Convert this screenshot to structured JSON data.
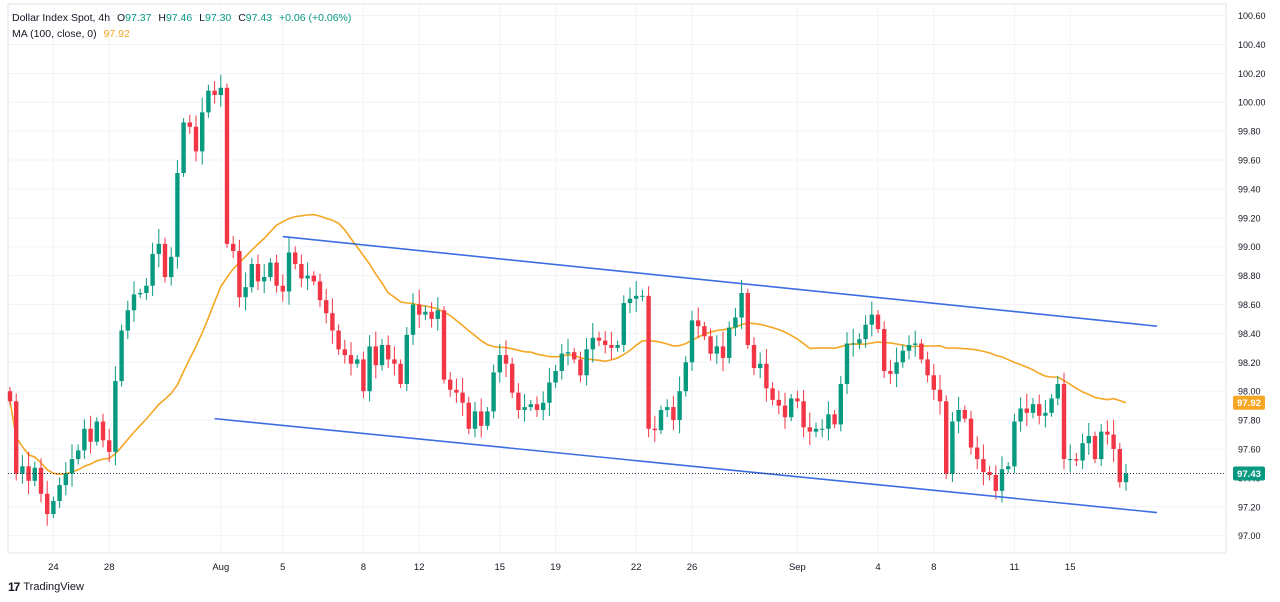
{
  "legend": {
    "symbol": "Dollar Index Spot, 4h",
    "open_label": "O",
    "open": "97.37",
    "high_label": "H",
    "high": "97.46",
    "low_label": "L",
    "low": "97.30",
    "close_label": "C",
    "close": "97.43",
    "change": "+0.06 (+0.06%)",
    "ma_label": "MA (100, close, 0)",
    "ma_value": "97.92"
  },
  "footer": {
    "logo": "17",
    "brand": "TradingView"
  },
  "chart_data": {
    "type": "candlestick",
    "title": "Dollar Index Spot, 4h",
    "ylim": [
      96.88,
      100.68
    ],
    "y_ticks": [
      "100.60",
      "100.40",
      "100.20",
      "100.00",
      "99.80",
      "99.60",
      "99.40",
      "99.20",
      "99.00",
      "98.80",
      "98.60",
      "98.40",
      "98.20",
      "98.00",
      "97.80",
      "97.60",
      "97.40",
      "97.20",
      "97.00"
    ],
    "x_ticks": [
      {
        "label": "24",
        "index": 7
      },
      {
        "label": "28",
        "index": 16
      },
      {
        "label": "Aug",
        "index": 34
      },
      {
        "label": "5",
        "index": 44
      },
      {
        "label": "8",
        "index": 57
      },
      {
        "label": "12",
        "index": 66
      },
      {
        "label": "15",
        "index": 79
      },
      {
        "label": "19",
        "index": 88
      },
      {
        "label": "22",
        "index": 101
      },
      {
        "label": "26",
        "index": 110
      },
      {
        "label": "Sep",
        "index": 127
      },
      {
        "label": "4",
        "index": 140
      },
      {
        "label": "8",
        "index": 149
      },
      {
        "label": "11",
        "index": 162
      },
      {
        "label": "15",
        "index": 171
      }
    ],
    "closes": [
      97.93,
      97.43,
      97.48,
      97.38,
      97.47,
      97.29,
      97.15,
      97.24,
      97.35,
      97.43,
      97.53,
      97.59,
      97.74,
      97.65,
      97.79,
      97.66,
      97.58,
      98.07,
      98.42,
      98.56,
      98.67,
      98.68,
      98.73,
      98.95,
      99.02,
      98.79,
      98.93,
      99.51,
      99.86,
      99.83,
      99.66,
      99.93,
      100.08,
      100.05,
      100.1,
      99.02,
      98.97,
      98.65,
      98.72,
      98.88,
      98.76,
      98.79,
      98.89,
      98.73,
      98.69,
      98.96,
      98.88,
      98.78,
      98.8,
      98.76,
      98.63,
      98.54,
      98.42,
      98.29,
      98.25,
      98.19,
      98.22,
      98.0,
      98.31,
      98.18,
      98.32,
      98.22,
      98.19,
      98.05,
      98.39,
      98.6,
      98.53,
      98.55,
      98.5,
      98.56,
      98.08,
      98.01,
      97.99,
      97.92,
      97.74,
      97.86,
      97.76,
      97.86,
      98.13,
      98.25,
      98.19,
      97.99,
      97.87,
      97.89,
      97.91,
      97.87,
      97.92,
      98.06,
      98.14,
      98.26,
      98.27,
      98.22,
      98.11,
      98.29,
      98.37,
      98.35,
      98.32,
      98.3,
      98.32,
      98.61,
      98.64,
      98.66,
      98.66,
      97.74,
      97.73,
      97.87,
      97.89,
      97.8,
      98.0,
      98.2,
      98.49,
      98.45,
      98.38,
      98.26,
      98.31,
      98.23,
      98.44,
      98.51,
      98.68,
      98.32,
      98.16,
      98.19,
      98.02,
      97.94,
      97.9,
      97.82,
      97.95,
      97.93,
      97.75,
      97.72,
      97.74,
      97.74,
      97.84,
      97.77,
      98.05,
      98.33,
      98.33,
      98.36,
      98.46,
      98.53,
      98.43,
      98.14,
      98.12,
      98.2,
      98.28,
      98.32,
      98.33,
      98.22,
      98.11,
      98.01,
      97.93,
      97.43,
      97.79,
      97.87,
      97.81,
      97.61,
      97.53,
      97.44,
      97.42,
      97.31,
      97.46,
      97.48,
      97.79,
      97.88,
      97.85,
      97.91,
      97.83,
      97.85,
      97.95,
      98.05,
      97.53,
      97.53,
      97.52,
      97.64,
      97.69,
      97.53,
      97.72,
      97.7,
      97.6,
      97.37,
      97.43
    ],
    "ma": {
      "name": "MA (100, close, 0)",
      "color": "#f5a623",
      "last": 97.92
    },
    "channel": {
      "upper": [
        [
          44,
          99.07
        ],
        [
          185,
          98.45
        ]
      ],
      "lower": [
        [
          33,
          97.81
        ],
        [
          185,
          97.16
        ]
      ],
      "color": "#3d6ee0"
    },
    "last_price": "97.43",
    "ma_price": "97.92",
    "up_color": "#089981",
    "down_color": "#f23645"
  }
}
